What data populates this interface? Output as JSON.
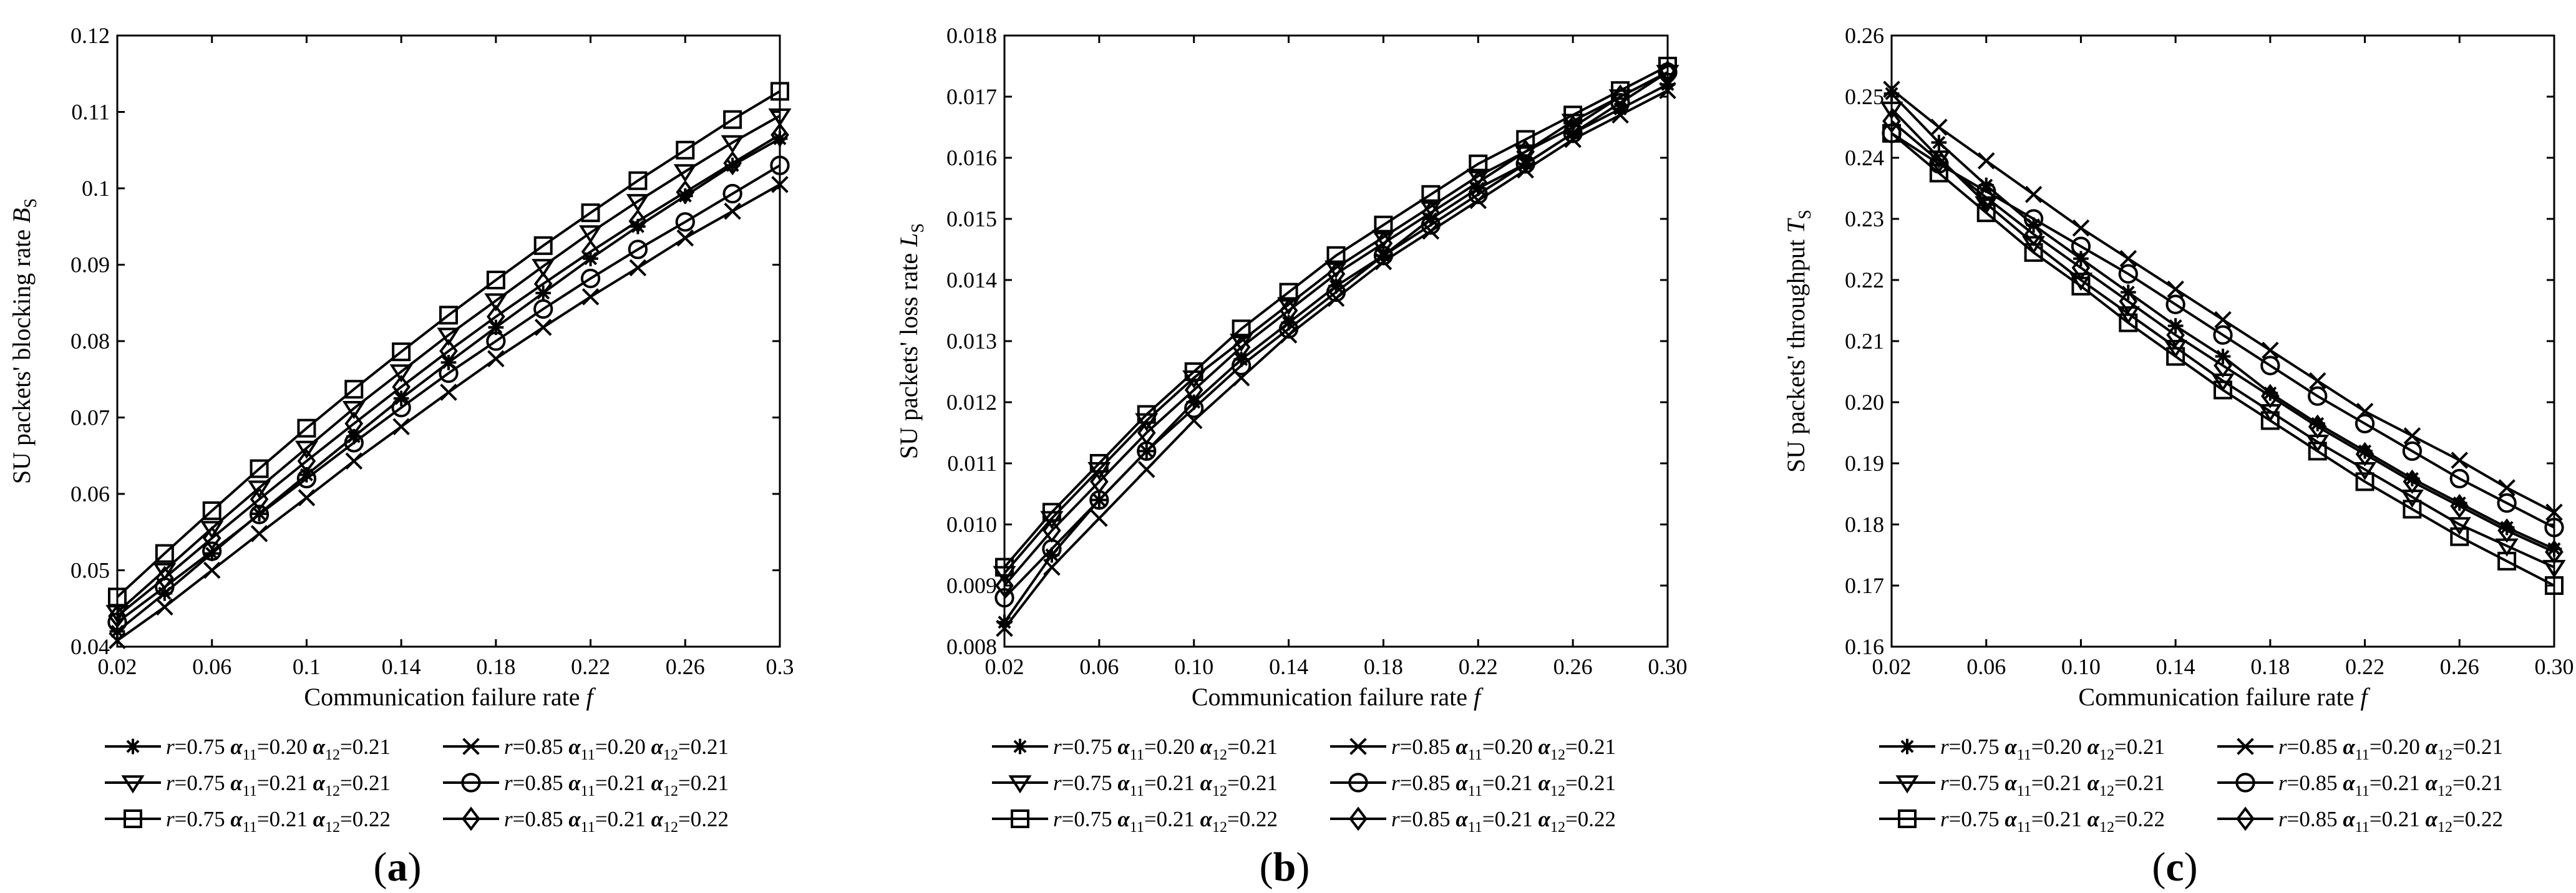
{
  "chart_data": [
    {
      "type": "line",
      "caption": "(a)",
      "xlabel": "Communication failure rate",
      "xlabel_var": "f",
      "ylabel": "SU packets' blocking rate",
      "ylabel_var": "B",
      "ylabel_sub": "S",
      "xlim": [
        0.02,
        0.3
      ],
      "ylim": [
        0.04,
        0.12
      ],
      "xticks": [
        "0.02",
        "0.06",
        "0.1",
        "0.14",
        "0.18",
        "0.22",
        "0.26",
        "0.3"
      ],
      "yticks": [
        "0.04",
        "0.05",
        "0.06",
        "0.07",
        "0.08",
        "0.09",
        "0.1",
        "0.11",
        "0.12"
      ],
      "x": [
        0.02,
        0.04,
        0.06,
        0.08,
        0.1,
        0.12,
        0.14,
        0.16,
        0.18,
        0.2,
        0.22,
        0.24,
        0.26,
        0.28,
        0.3
      ],
      "series": [
        {
          "name": "r=0.75 α11=0.20 α12=0.21",
          "marker": "star",
          "values": [
            0.042,
            0.047,
            0.0522,
            0.0574,
            0.0625,
            0.0675,
            0.0725,
            0.0772,
            0.0818,
            0.0863,
            0.0908,
            0.095,
            0.099,
            0.103,
            0.1065
          ]
        },
        {
          "name": "r=0.85 α11=0.20 α12=0.21",
          "marker": "x",
          "values": [
            0.0408,
            0.0452,
            0.05,
            0.0548,
            0.0595,
            0.0643,
            0.0688,
            0.0733,
            0.0777,
            0.0818,
            0.0858,
            0.0896,
            0.0935,
            0.097,
            0.1005
          ]
        },
        {
          "name": "r=0.75 α11=0.21 α12=0.21",
          "marker": "triangle",
          "values": [
            0.0445,
            0.05,
            0.0555,
            0.0608,
            0.066,
            0.0712,
            0.076,
            0.0808,
            0.0853,
            0.0898,
            0.0942,
            0.0983,
            0.1022,
            0.106,
            0.1095
          ]
        },
        {
          "name": "r=0.85 α11=0.21 α12=0.21",
          "marker": "circle",
          "values": [
            0.0432,
            0.0478,
            0.0525,
            0.0573,
            0.062,
            0.0667,
            0.0713,
            0.0758,
            0.08,
            0.0842,
            0.0882,
            0.092,
            0.0956,
            0.0993,
            0.103
          ]
        },
        {
          "name": "r=0.75 α11=0.21 α12=0.22",
          "marker": "square",
          "values": [
            0.0465,
            0.0522,
            0.0578,
            0.0633,
            0.0686,
            0.0737,
            0.0786,
            0.0834,
            0.088,
            0.0925,
            0.0968,
            0.101,
            0.105,
            0.109,
            0.1127
          ]
        },
        {
          "name": "r=0.85 α11=0.21 α12=0.22",
          "marker": "diamond",
          "values": [
            0.044,
            0.049,
            0.0542,
            0.0593,
            0.0643,
            0.0692,
            0.074,
            0.0787,
            0.0832,
            0.0875,
            0.0917,
            0.0957,
            0.0995,
            0.1033,
            0.107
          ]
        }
      ]
    },
    {
      "type": "line",
      "caption": "(b)",
      "xlabel": "Communication failure rate",
      "xlabel_var": "f",
      "ylabel": "SU packets' loss rate",
      "ylabel_var": "L",
      "ylabel_sub": "S",
      "xlim": [
        0.02,
        0.3
      ],
      "ylim": [
        0.008,
        0.018
      ],
      "xticks": [
        "0.02",
        "0.06",
        "0.10",
        "0.14",
        "0.18",
        "0.22",
        "0.26",
        "0.30"
      ],
      "yticks": [
        "0.008",
        "0.009",
        "0.010",
        "0.011",
        "0.012",
        "0.013",
        "0.014",
        "0.015",
        "0.016",
        "0.017",
        "0.018"
      ],
      "x": [
        0.02,
        0.04,
        0.06,
        0.08,
        0.1,
        0.12,
        0.14,
        0.16,
        0.18,
        0.2,
        0.22,
        0.24,
        0.26,
        0.28,
        0.3
      ],
      "series": [
        {
          "name": "r=0.75 α11=0.20 α12=0.21",
          "marker": "star",
          "values": [
            0.0084,
            0.0095,
            0.0104,
            0.0112,
            0.012,
            0.0127,
            0.0133,
            0.0139,
            0.0144,
            0.015,
            0.0155,
            0.0159,
            0.0164,
            0.0168,
            0.0172
          ]
        },
        {
          "name": "r=0.85 α11=0.20 α12=0.21",
          "marker": "x",
          "values": [
            0.0083,
            0.0093,
            0.0101,
            0.0109,
            0.0117,
            0.0124,
            0.0131,
            0.0137,
            0.0143,
            0.0148,
            0.0153,
            0.0158,
            0.0163,
            0.0167,
            0.0171
          ]
        },
        {
          "name": "r=0.75 α11=0.21 α12=0.21",
          "marker": "triangle",
          "values": [
            0.0092,
            0.0101,
            0.0109,
            0.0117,
            0.0124,
            0.013,
            0.0136,
            0.0142,
            0.0147,
            0.0152,
            0.0157,
            0.0161,
            0.0166,
            0.017,
            0.0174
          ]
        },
        {
          "name": "r=0.85 α11=0.21 α12=0.21",
          "marker": "circle",
          "values": [
            0.0088,
            0.0096,
            0.0104,
            0.0112,
            0.0119,
            0.0126,
            0.0132,
            0.0138,
            0.0144,
            0.0149,
            0.0154,
            0.0159,
            0.0164,
            0.0169,
            0.0174
          ]
        },
        {
          "name": "r=0.75 α11=0.21 α12=0.22",
          "marker": "square",
          "values": [
            0.0093,
            0.0102,
            0.011,
            0.0118,
            0.0125,
            0.0132,
            0.0138,
            0.0144,
            0.0149,
            0.0154,
            0.0159,
            0.0163,
            0.0167,
            0.0171,
            0.0175
          ]
        },
        {
          "name": "r=0.85 α11=0.21 α12=0.22",
          "marker": "diamond",
          "values": [
            0.009,
            0.0099,
            0.0107,
            0.0115,
            0.0122,
            0.0129,
            0.0135,
            0.0141,
            0.0146,
            0.0151,
            0.0156,
            0.0161,
            0.0165,
            0.017,
            0.0174
          ]
        }
      ]
    },
    {
      "type": "line",
      "caption": "(c)",
      "xlabel": "Communication failure rate",
      "xlabel_var": "f",
      "ylabel": "SU packets' throughput",
      "ylabel_var": "T",
      "ylabel_sub": "S",
      "xlim": [
        0.02,
        0.3
      ],
      "ylim": [
        0.16,
        0.26
      ],
      "xticks": [
        "0.02",
        "0.06",
        "0.10",
        "0.14",
        "0.18",
        "0.22",
        "0.26",
        "0.30"
      ],
      "yticks": [
        "0.16",
        "0.17",
        "0.18",
        "0.19",
        "0.20",
        "0.21",
        "0.22",
        "0.23",
        "0.24",
        "0.25",
        "0.26"
      ],
      "x": [
        0.02,
        0.04,
        0.06,
        0.08,
        0.1,
        0.12,
        0.14,
        0.16,
        0.18,
        0.2,
        0.22,
        0.24,
        0.26,
        0.28,
        0.3
      ],
      "series": [
        {
          "name": "r=0.75 α11=0.20 α12=0.21",
          "marker": "star",
          "values": [
            0.2505,
            0.2425,
            0.2355,
            0.229,
            0.2235,
            0.218,
            0.2125,
            0.2075,
            0.2015,
            0.1965,
            0.192,
            0.1875,
            0.1835,
            0.1795,
            0.176
          ]
        },
        {
          "name": "r=0.85 α11=0.20 α12=0.21",
          "marker": "x",
          "values": [
            0.2512,
            0.245,
            0.2395,
            0.234,
            0.2285,
            0.2235,
            0.2185,
            0.2135,
            0.2085,
            0.2035,
            0.1985,
            0.1945,
            0.1905,
            0.186,
            0.182
          ]
        },
        {
          "name": "r=0.75 α11=0.21 α12=0.21",
          "marker": "triangle",
          "values": [
            0.248,
            0.24,
            0.2325,
            0.226,
            0.22,
            0.2145,
            0.209,
            0.2035,
            0.1985,
            0.1935,
            0.189,
            0.1845,
            0.18,
            0.1765,
            0.173
          ]
        },
        {
          "name": "r=0.85 α11=0.21 α12=0.21",
          "marker": "circle",
          "values": [
            0.244,
            0.239,
            0.2345,
            0.23,
            0.2255,
            0.221,
            0.216,
            0.211,
            0.206,
            0.201,
            0.1965,
            0.192,
            0.1875,
            0.1835,
            0.1795
          ]
        },
        {
          "name": "r=0.75 α11=0.21 α12=0.22",
          "marker": "square",
          "values": [
            0.244,
            0.2375,
            0.231,
            0.2245,
            0.219,
            0.213,
            0.2075,
            0.202,
            0.197,
            0.192,
            0.187,
            0.1825,
            0.178,
            0.174,
            0.17
          ]
        },
        {
          "name": "r=0.85 α11=0.21 α12=0.22",
          "marker": "diamond",
          "values": [
            0.246,
            0.2395,
            0.2335,
            0.2275,
            0.222,
            0.2165,
            0.211,
            0.206,
            0.201,
            0.196,
            0.1915,
            0.187,
            0.183,
            0.179,
            0.1755
          ]
        }
      ]
    }
  ],
  "legend": [
    {
      "marker": "star",
      "r": "=0.75",
      "a11": "=0.20",
      "a12": "=0.21"
    },
    {
      "marker": "x",
      "r": "=0.85",
      "a11": "=0.20",
      "a12": "=0.21"
    },
    {
      "marker": "triangle",
      "r": "=0.75",
      "a11": "=0.21",
      "a12": "=0.21"
    },
    {
      "marker": "circle",
      "r": "=0.85",
      "a11": "=0.21",
      "a12": "=0.21"
    },
    {
      "marker": "square",
      "r": "=0.75",
      "a11": "=0.21",
      "a12": "=0.22"
    },
    {
      "marker": "diamond",
      "r": "=0.85",
      "a11": "=0.21",
      "a12": "=0.22"
    }
  ],
  "legend_symbols": {
    "r": "r",
    "alpha": "α",
    "sub11": "11",
    "sub12": "12"
  }
}
